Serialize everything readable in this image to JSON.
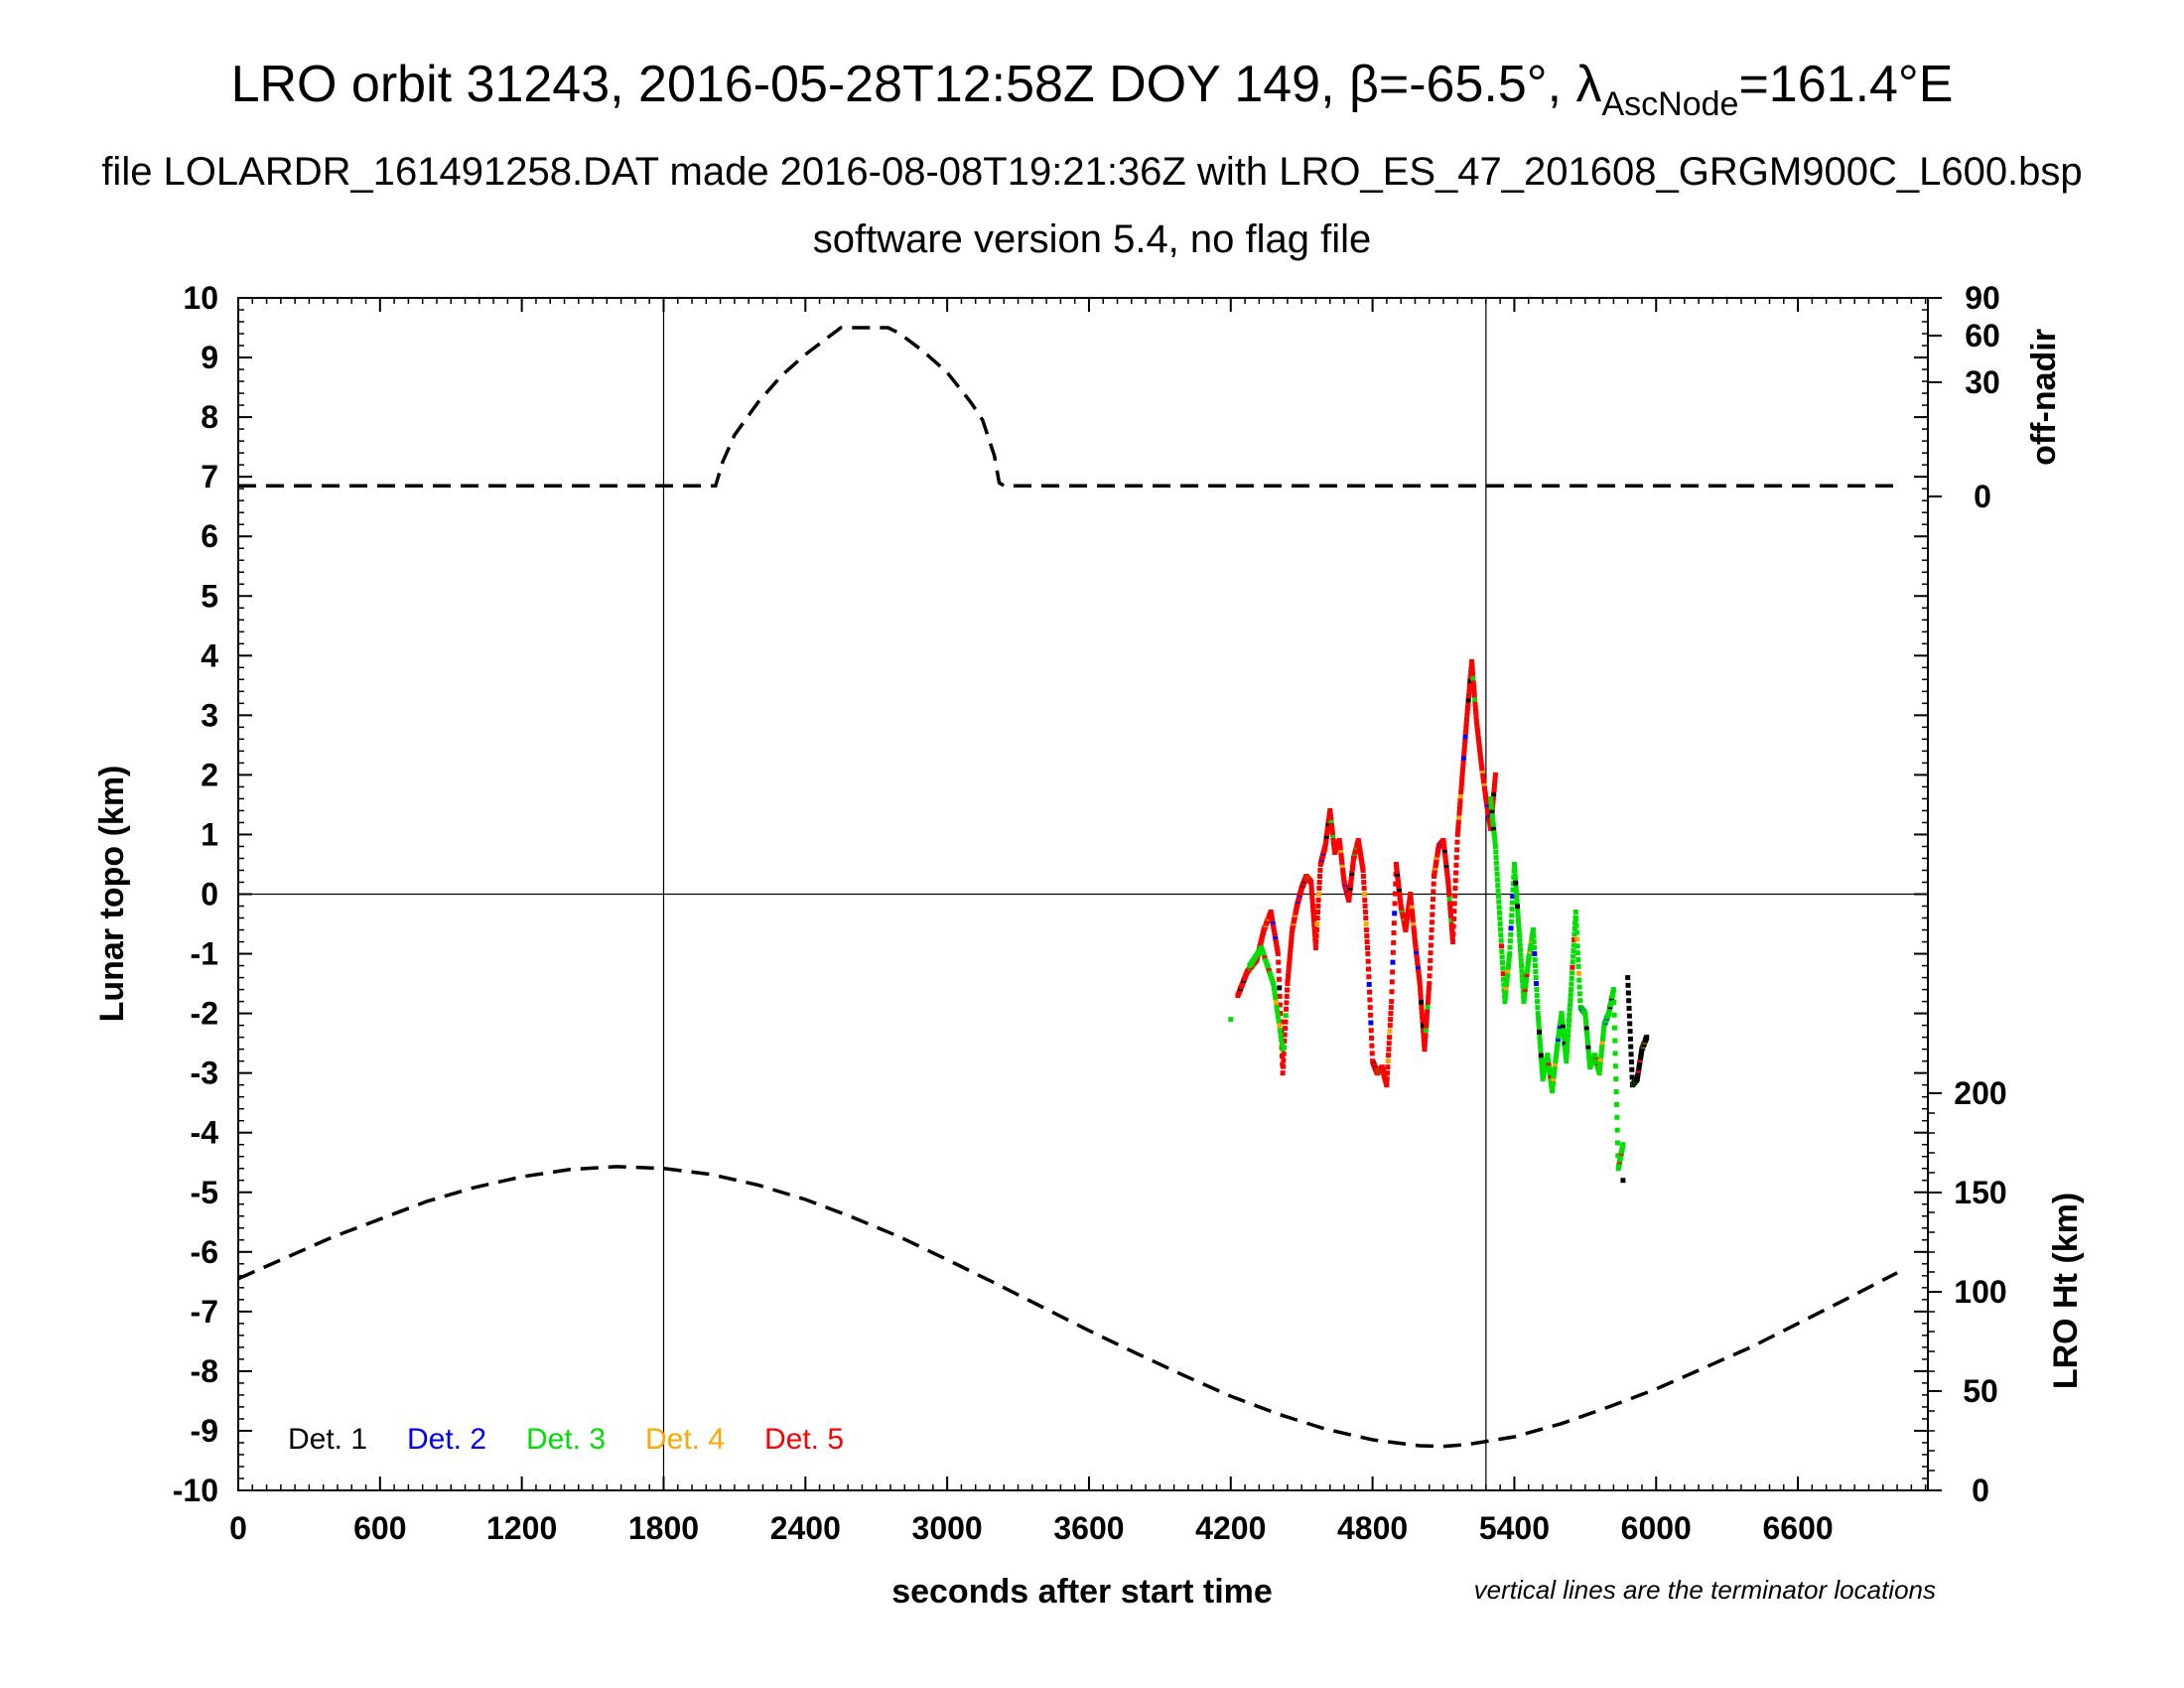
{
  "title": {
    "line1_main": "LRO orbit 31243, 2016-05-28T12:58Z DOY 149, β=-65.5°, λ",
    "line1_sub": "AscNode",
    "line1_end": "=161.4°E",
    "line2": "file LOLARDR_161491258.DAT made 2016-08-08T19:21:36Z with LRO_ES_47_201608_GRGM900C_L600.bsp",
    "line3": "software version 5.4, no flag file"
  },
  "axes": {
    "xlabel": "seconds after start time",
    "ylabel_left": "Lunar topo (km)",
    "ylabel_right_top": "off-nadir",
    "ylabel_right_bottom": "LRO Ht (km)",
    "note": "vertical lines are the terminator locations",
    "xlim": [
      0,
      7150
    ],
    "ylim": [
      -10,
      10
    ],
    "xticks": [
      "0",
      "600",
      "1200",
      "1800",
      "2400",
      "3000",
      "3600",
      "4200",
      "4800",
      "5400",
      "6000",
      "6600"
    ],
    "yticks": [
      "10",
      "9",
      "8",
      "7",
      "6",
      "5",
      "4",
      "3",
      "2",
      "1",
      "0",
      "-1",
      "-2",
      "-3",
      "-4",
      "-5",
      "-6",
      "-7",
      "-8",
      "-9",
      "-10"
    ],
    "offnadir_ticks": [
      "90",
      "60",
      "30",
      "0"
    ],
    "height_ticks": [
      "200",
      "150",
      "100",
      "50",
      "0"
    ]
  },
  "legend": [
    {
      "label": "Det. 1",
      "color": "#000000"
    },
    {
      "label": "Det. 2",
      "color": "#0000ff"
    },
    {
      "label": "Det. 3",
      "color": "#00e000"
    },
    {
      "label": "Det. 4",
      "color": "#ffa500"
    },
    {
      "label": "Det. 5",
      "color": "#ff0000"
    }
  ],
  "chart_data": {
    "type": "scatter",
    "x_unit": "seconds after start time",
    "terminator_x": [
      1800,
      5280
    ],
    "zero_line_y": 0,
    "off_nadir_series": {
      "style": "dashed",
      "x": [
        0,
        2000,
        2020,
        2050,
        2100,
        2200,
        2300,
        2400,
        2500,
        2550,
        2600,
        2700,
        2750,
        2800,
        2900,
        3000,
        3100,
        3150,
        3200,
        3220,
        3240,
        7020
      ],
      "topo_equiv_y": [
        6.85,
        6.85,
        6.85,
        7.25,
        7.7,
        8.25,
        8.7,
        9.05,
        9.35,
        9.5,
        9.5,
        9.5,
        9.5,
        9.4,
        9.1,
        8.75,
        8.25,
        7.95,
        7.35,
        6.9,
        6.85,
        6.85
      ]
    },
    "lro_height_series": {
      "style": "dashed",
      "x": [
        0,
        200,
        400,
        600,
        800,
        1000,
        1200,
        1400,
        1600,
        1800,
        2000,
        2200,
        2400,
        2600,
        2800,
        3000,
        3200,
        3400,
        3600,
        3800,
        4000,
        4200,
        4400,
        4600,
        4800,
        5000,
        5100,
        5200,
        5400,
        5600,
        5800,
        6000,
        6200,
        6400,
        6600,
        6800,
        7020
      ],
      "topo_equiv_y": [
        -6.45,
        -6.1,
        -5.75,
        -5.45,
        -5.15,
        -4.92,
        -4.74,
        -4.62,
        -4.57,
        -4.6,
        -4.7,
        -4.88,
        -5.12,
        -5.42,
        -5.75,
        -6.13,
        -6.52,
        -6.92,
        -7.32,
        -7.7,
        -8.07,
        -8.42,
        -8.72,
        -8.97,
        -9.15,
        -9.25,
        -9.26,
        -9.23,
        -9.1,
        -8.88,
        -8.6,
        -8.3,
        -7.95,
        -7.6,
        -7.2,
        -6.8,
        -6.35
      ]
    },
    "topo_series": [
      {
        "detector": "Det. 5",
        "points": [
          [
            4230,
            -1.7
          ],
          [
            4270,
            -1.3
          ],
          [
            4310,
            -1.1
          ],
          [
            4340,
            -0.6
          ],
          [
            4370,
            -0.3
          ],
          [
            4400,
            -1.0
          ],
          [
            4420,
            -3.0
          ],
          [
            4440,
            -1.5
          ],
          [
            4460,
            -0.6
          ],
          [
            4480,
            -0.2
          ],
          [
            4500,
            0.1
          ],
          [
            4520,
            0.3
          ],
          [
            4540,
            0.2
          ],
          [
            4560,
            -0.9
          ],
          [
            4580,
            0.5
          ],
          [
            4600,
            0.8
          ],
          [
            4620,
            1.4
          ],
          [
            4640,
            0.7
          ],
          [
            4660,
            0.9
          ],
          [
            4680,
            0.2
          ],
          [
            4700,
            -0.1
          ],
          [
            4720,
            0.6
          ],
          [
            4740,
            0.9
          ],
          [
            4760,
            0.4
          ],
          [
            4780,
            -1.0
          ],
          [
            4800,
            -2.8
          ],
          [
            4820,
            -3.0
          ],
          [
            4840,
            -2.9
          ],
          [
            4860,
            -3.2
          ],
          [
            4880,
            -1.8
          ],
          [
            4900,
            0.5
          ],
          [
            4920,
            -0.2
          ],
          [
            4940,
            -0.6
          ],
          [
            4960,
            0.0
          ],
          [
            4980,
            -0.8
          ],
          [
            5000,
            -1.5
          ],
          [
            5020,
            -2.6
          ],
          [
            5040,
            -1.5
          ],
          [
            5060,
            0.3
          ],
          [
            5080,
            0.8
          ],
          [
            5100,
            0.9
          ],
          [
            5120,
            0.2
          ],
          [
            5140,
            -0.8
          ],
          [
            5160,
            1.0
          ],
          [
            5180,
            2.0
          ],
          [
            5200,
            3.0
          ],
          [
            5220,
            3.9
          ],
          [
            5240,
            2.9
          ],
          [
            5260,
            2.2
          ],
          [
            5280,
            1.6
          ],
          [
            5300,
            1.1
          ],
          [
            5320,
            2.0
          ]
        ]
      },
      {
        "detector": "Det. 3",
        "points": [
          [
            4200,
            -2.1
          ],
          [
            4280,
            -1.2
          ],
          [
            4330,
            -0.9
          ],
          [
            4380,
            -1.5
          ],
          [
            4420,
            -2.6
          ],
          [
            5300,
            1.6
          ],
          [
            5320,
            0.8
          ],
          [
            5340,
            -0.5
          ],
          [
            5360,
            -1.8
          ],
          [
            5380,
            -1.0
          ],
          [
            5400,
            0.5
          ],
          [
            5420,
            -0.6
          ],
          [
            5440,
            -1.8
          ],
          [
            5460,
            -1.1
          ],
          [
            5480,
            -0.6
          ],
          [
            5500,
            -2.0
          ],
          [
            5520,
            -3.1
          ],
          [
            5540,
            -2.7
          ],
          [
            5560,
            -3.3
          ],
          [
            5580,
            -2.6
          ],
          [
            5600,
            -2.0
          ],
          [
            5620,
            -2.8
          ],
          [
            5640,
            -1.6
          ],
          [
            5660,
            -0.3
          ],
          [
            5680,
            -1.9
          ],
          [
            5700,
            -2.0
          ],
          [
            5720,
            -2.9
          ],
          [
            5740,
            -2.7
          ],
          [
            5760,
            -3.0
          ],
          [
            5780,
            -2.2
          ],
          [
            5800,
            -2.0
          ],
          [
            5820,
            -1.6
          ],
          [
            5840,
            -4.6
          ],
          [
            5860,
            -4.2
          ]
        ]
      },
      {
        "detector": "Det. 1",
        "points": [
          [
            5880,
            -1.4
          ],
          [
            5900,
            -3.2
          ],
          [
            5920,
            -3.1
          ],
          [
            5940,
            -2.6
          ],
          [
            5960,
            -2.4
          ],
          [
            5860,
            -4.8
          ]
        ]
      }
    ]
  }
}
